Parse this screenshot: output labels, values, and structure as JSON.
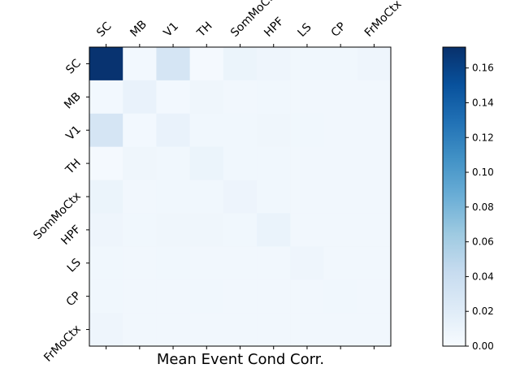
{
  "chart_data": {
    "type": "heatmap",
    "title": "",
    "xlabel": "Mean Event Cond Corr.",
    "ylabel": "",
    "x_categories": [
      "SC",
      "MB",
      "V1",
      "TH",
      "SomMoCtx",
      "HPF",
      "LS",
      "CP",
      "FrMoCtx"
    ],
    "y_categories": [
      "SC",
      "MB",
      "V1",
      "TH",
      "SomMoCtx",
      "HPF",
      "LS",
      "CP",
      "FrMoCtx"
    ],
    "values": [
      [
        0.17,
        0.004,
        0.03,
        0.003,
        0.01,
        0.008,
        0.006,
        0.006,
        0.008
      ],
      [
        0.004,
        0.012,
        0.004,
        0.007,
        0.005,
        0.006,
        0.005,
        0.005,
        0.005
      ],
      [
        0.03,
        0.004,
        0.012,
        0.006,
        0.006,
        0.007,
        0.006,
        0.005,
        0.005
      ],
      [
        0.003,
        0.007,
        0.006,
        0.01,
        0.006,
        0.006,
        0.005,
        0.005,
        0.005
      ],
      [
        0.01,
        0.005,
        0.006,
        0.006,
        0.009,
        0.006,
        0.005,
        0.005,
        0.005
      ],
      [
        0.008,
        0.006,
        0.007,
        0.007,
        0.006,
        0.011,
        0.005,
        0.005,
        0.005
      ],
      [
        0.006,
        0.005,
        0.006,
        0.005,
        0.005,
        0.005,
        0.008,
        0.005,
        0.005
      ],
      [
        0.006,
        0.005,
        0.005,
        0.006,
        0.005,
        0.005,
        0.005,
        0.006,
        0.005
      ],
      [
        0.008,
        0.005,
        0.005,
        0.005,
        0.005,
        0.005,
        0.005,
        0.005,
        0.005
      ]
    ],
    "colormap": "Blues",
    "color_range": [
      0,
      0.172
    ],
    "colorbar_ticks": [
      "0.00",
      "0.02",
      "0.04",
      "0.06",
      "0.08",
      "0.10",
      "0.12",
      "0.14",
      "0.16"
    ],
    "grid": false
  }
}
